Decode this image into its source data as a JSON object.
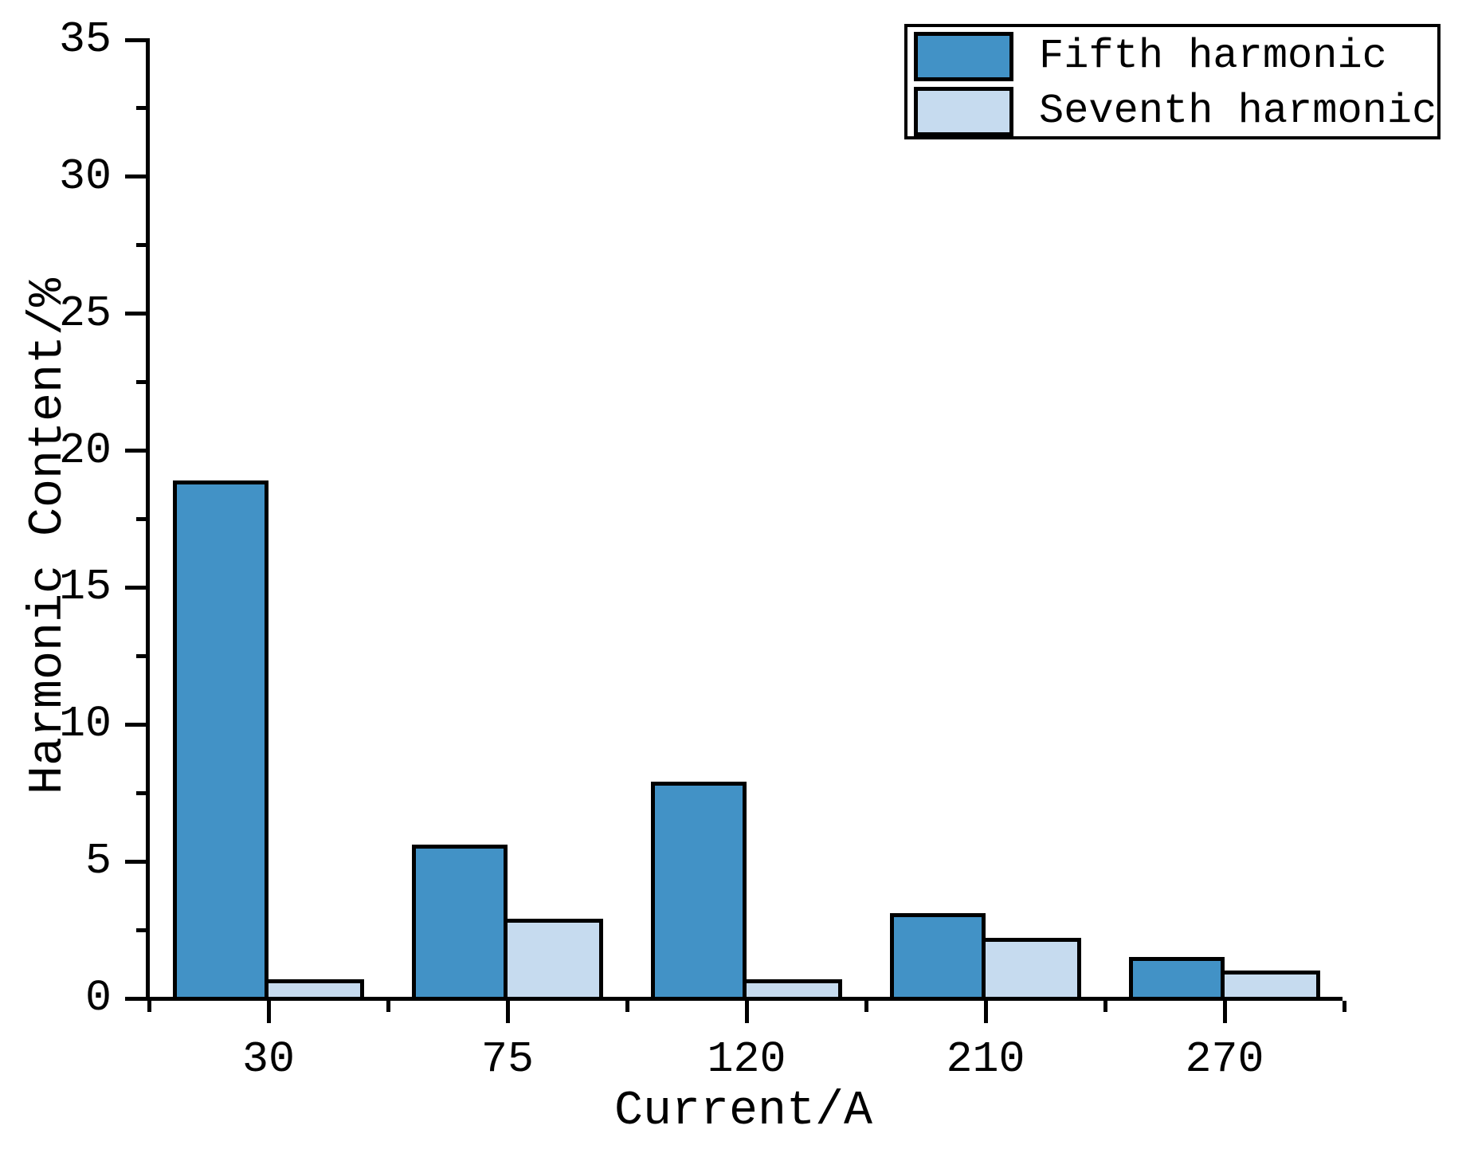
{
  "figure": {
    "background": "#ffffff",
    "text_color": "#000000"
  },
  "chart_data": {
    "type": "bar",
    "title": "",
    "xlabel": "Current/A",
    "ylabel": "Harmonic Content/%",
    "categories": [
      "30",
      "75",
      "120",
      "210",
      "270"
    ],
    "series": [
      {
        "name": "Fifth harmonic",
        "color": "#4292c6",
        "values": [
          19.0,
          5.7,
          8.0,
          3.2,
          1.6
        ]
      },
      {
        "name": "Seventh harmonic",
        "color": "#c6dbef",
        "values": [
          0.8,
          3.0,
          0.8,
          2.3,
          1.1
        ]
      }
    ],
    "ylim": [
      0,
      35
    ],
    "y_major_step": 5,
    "y_minor_step": 2.5,
    "y_tick_labels": [
      "0",
      "5",
      "10",
      "15",
      "20",
      "25",
      "30",
      "35"
    ],
    "grid": false,
    "legend_position": "top-right",
    "bar_border_color": "#000000",
    "axis_color": "#000000"
  }
}
